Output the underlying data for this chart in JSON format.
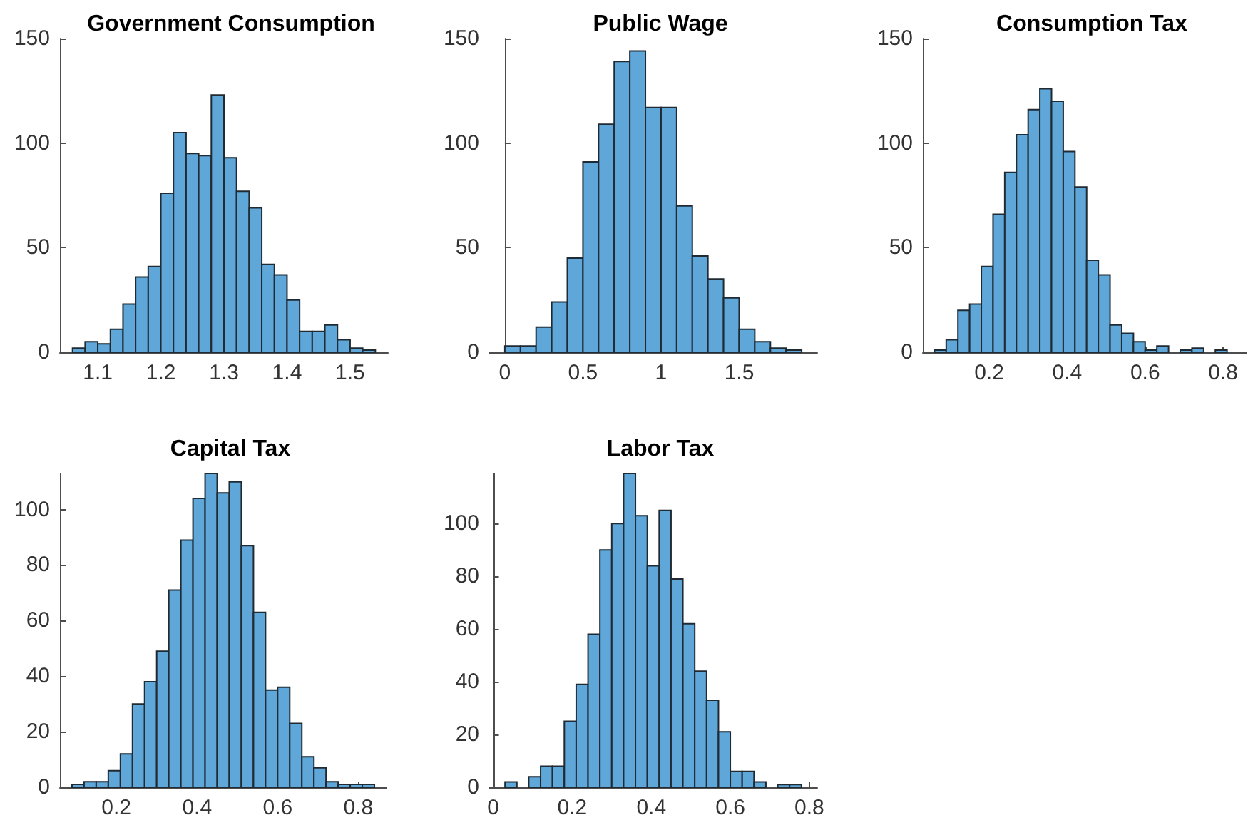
{
  "chart_data": [
    {
      "type": "histogram",
      "title": "Government Consumption",
      "color": "#5fa7d9",
      "grid": false,
      "bins": [
        1.06,
        1.08,
        1.1,
        1.12,
        1.14,
        1.16,
        1.18,
        1.2,
        1.22,
        1.24,
        1.26,
        1.28,
        1.3,
        1.32,
        1.34,
        1.36,
        1.38,
        1.4,
        1.42,
        1.44,
        1.46,
        1.48,
        1.5,
        1.52,
        1.54
      ],
      "values": [
        2,
        5,
        4,
        11,
        23,
        36,
        41,
        76,
        105,
        95,
        94,
        123,
        93,
        77,
        69,
        42,
        37,
        25,
        10,
        10,
        13,
        6,
        2,
        1
      ],
      "xlim": [
        1.04,
        1.56
      ],
      "xticks": [
        1.1,
        1.2,
        1.3,
        1.4,
        1.5
      ],
      "ylim": [
        0,
        150
      ],
      "yticks": [
        0,
        50,
        100,
        150
      ]
    },
    {
      "type": "histogram",
      "title": "Public Wage",
      "color": "#5fa7d9",
      "grid": false,
      "bins": [
        0,
        0.1,
        0.2,
        0.3,
        0.4,
        0.5,
        0.6,
        0.7,
        0.8,
        0.9,
        1,
        1.1,
        1.2,
        1.3,
        1.4,
        1.5,
        1.6,
        1.7,
        1.8,
        1.9
      ],
      "values": [
        3,
        3,
        12,
        24,
        45,
        91,
        109,
        139,
        144,
        117,
        117,
        70,
        46,
        35,
        26,
        11,
        5,
        2,
        1
      ],
      "xlim": [
        -0.1,
        2.0
      ],
      "xticks": [
        0,
        0.5,
        1,
        1.5
      ],
      "ylim": [
        0,
        150
      ],
      "yticks": [
        0,
        50,
        100,
        150
      ]
    },
    {
      "type": "histogram",
      "title": "Consumption Tax",
      "color": "#5fa7d9",
      "grid": false,
      "bins": [
        0.06,
        0.09,
        0.12,
        0.15,
        0.18,
        0.21,
        0.24,
        0.27,
        0.3,
        0.33,
        0.36,
        0.39,
        0.42,
        0.45,
        0.48,
        0.51,
        0.54,
        0.57,
        0.6,
        0.63,
        0.66,
        0.69,
        0.72,
        0.75,
        0.78,
        0.81
      ],
      "values": [
        1,
        6,
        20,
        23,
        41,
        66,
        86,
        104,
        116,
        126,
        120,
        96,
        79,
        44,
        37,
        13,
        9,
        5,
        1,
        3,
        0,
        1,
        2,
        0,
        1
      ],
      "xlim": [
        0.03,
        0.86
      ],
      "xticks": [
        0.2,
        0.4,
        0.6,
        0.8
      ],
      "ylim": [
        0,
        150
      ],
      "yticks": [
        0,
        50,
        100,
        150
      ]
    },
    {
      "type": "histogram",
      "title": "Capital Tax",
      "color": "#5fa7d9",
      "grid": false,
      "bins": [
        0.09,
        0.12,
        0.15,
        0.18,
        0.21,
        0.24,
        0.27,
        0.3,
        0.33,
        0.36,
        0.39,
        0.42,
        0.45,
        0.48,
        0.51,
        0.54,
        0.57,
        0.6,
        0.63,
        0.66,
        0.69,
        0.72,
        0.75,
        0.78,
        0.81,
        0.84
      ],
      "values": [
        1,
        2,
        2,
        6,
        12,
        30,
        38,
        49,
        71,
        89,
        104,
        113,
        106,
        110,
        87,
        63,
        35,
        36,
        23,
        11,
        7,
        2,
        1,
        1,
        1
      ],
      "xlim": [
        0.06,
        0.87
      ],
      "xticks": [
        0.2,
        0.4,
        0.6,
        0.8
      ],
      "ylim": [
        0,
        113
      ],
      "yticks": [
        0,
        20,
        40,
        60,
        80,
        100
      ]
    },
    {
      "type": "histogram",
      "title": "Labor Tax",
      "color": "#5fa7d9",
      "grid": false,
      "bins": [
        0.03,
        0.06,
        0.09,
        0.12,
        0.15,
        0.18,
        0.21,
        0.24,
        0.27,
        0.3,
        0.33,
        0.36,
        0.39,
        0.42,
        0.45,
        0.48,
        0.51,
        0.54,
        0.57,
        0.6,
        0.63,
        0.66,
        0.69,
        0.72,
        0.75,
        0.78
      ],
      "values": [
        2,
        0,
        4,
        8,
        8,
        25,
        39,
        58,
        90,
        100,
        119,
        103,
        84,
        105,
        79,
        62,
        44,
        33,
        21,
        6,
        6,
        2,
        0,
        1,
        1
      ],
      "xlim": [
        -0.01,
        0.82
      ],
      "xticks": [
        0,
        0.2,
        0.4,
        0.6,
        0.8
      ],
      "ylim": [
        0,
        119
      ],
      "yticks": [
        0,
        20,
        40,
        60,
        80,
        100
      ]
    }
  ]
}
